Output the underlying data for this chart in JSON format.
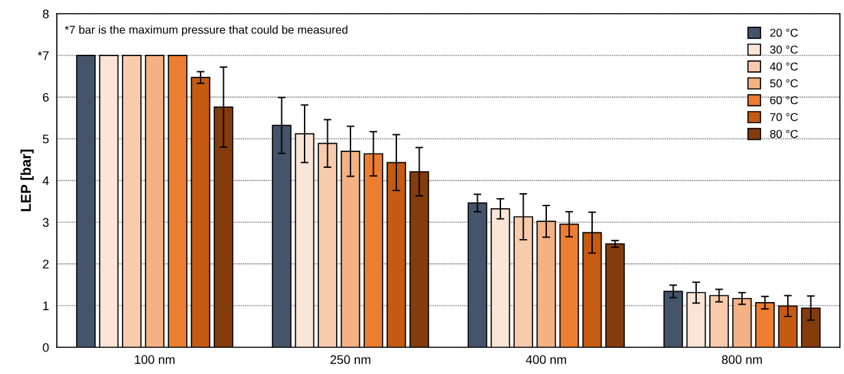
{
  "chart_data": {
    "type": "bar",
    "ylabel": "LEP [bar]",
    "categories": [
      "100 nm",
      "250 nm",
      "400 nm",
      "800 nm"
    ],
    "series": [
      {
        "name": "20 °C",
        "color": "#44546a",
        "values": [
          7,
          5.32,
          3.46,
          1.34
        ],
        "errors": [
          null,
          0.67,
          0.21,
          0.15
        ]
      },
      {
        "name": "30 °C",
        "color": "#fbe5d6",
        "values": [
          7,
          5.12,
          3.32,
          1.31
        ],
        "errors": [
          null,
          0.69,
          0.24,
          0.25
        ]
      },
      {
        "name": "40 °C",
        "color": "#f8cbad",
        "values": [
          7,
          4.89,
          3.13,
          1.24
        ],
        "errors": [
          null,
          0.57,
          0.55,
          0.15
        ]
      },
      {
        "name": "50 °C",
        "color": "#f4b183",
        "values": [
          7,
          4.7,
          3.02,
          1.17
        ],
        "errors": [
          null,
          0.6,
          0.38,
          0.14
        ]
      },
      {
        "name": "60 °C",
        "color": "#ed7d31",
        "values": [
          7,
          4.64,
          2.95,
          1.07
        ],
        "errors": [
          null,
          0.53,
          0.3,
          0.15
        ]
      },
      {
        "name": "70 °C",
        "color": "#c55a11",
        "values": [
          6.47,
          4.43,
          2.75,
          0.99
        ],
        "errors": [
          0.14,
          0.67,
          0.49,
          0.25
        ]
      },
      {
        "name": "80 °C",
        "color": "#843c0c",
        "values": [
          5.76,
          4.21,
          2.48,
          0.94
        ],
        "errors": [
          0.96,
          0.58,
          0.08,
          0.29
        ]
      }
    ],
    "ylim": [
      0,
      8
    ],
    "yticks": [
      0,
      1,
      2,
      3,
      4,
      5,
      6,
      {
        "value": 7,
        "label": "*7"
      },
      8
    ],
    "grid": "y",
    "legend": "top right",
    "annotations": [
      "*7 bar is the maximum pressure that could be measured"
    ]
  }
}
